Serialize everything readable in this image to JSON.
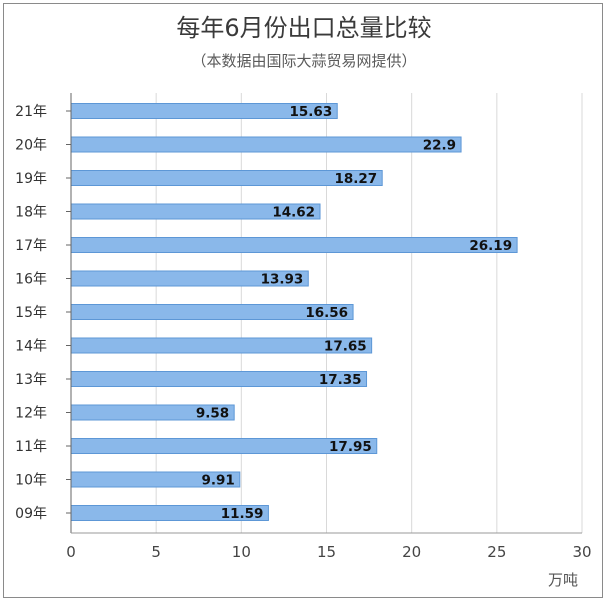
{
  "title": "每年6月份出口总量比较",
  "subtitle": "（本数据由国际大蒜贸易网提供）",
  "colors": {
    "bar": "#8ab8ea",
    "bar_edge": "#5d97d6",
    "grid": "#d9d9d9",
    "text": "#333333"
  },
  "chart_data": {
    "type": "bar",
    "orientation": "horizontal",
    "title": "每年6月份出口总量比较",
    "subtitle": "（本数据由国际大蒜贸易网提供）",
    "categories": [
      "21年",
      "20年",
      "19年",
      "18年",
      "17年",
      "16年",
      "15年",
      "14年",
      "13年",
      "12年",
      "11年",
      "10年",
      "09年"
    ],
    "values": [
      15.63,
      22.9,
      18.27,
      14.62,
      26.19,
      13.93,
      16.56,
      17.65,
      17.35,
      9.58,
      17.95,
      9.91,
      11.59
    ],
    "value_labels": [
      "15.63",
      "22.9",
      "18.27",
      "14.62",
      "26.19",
      "13.93",
      "16.56",
      "17.65",
      "17.35",
      "9.58",
      "17.95",
      "9.91",
      "11.59"
    ],
    "xticks": [
      "0",
      "5",
      "10",
      "15",
      "20",
      "25",
      "30"
    ],
    "xlim": [
      0,
      30
    ],
    "xlabel": "万吨",
    "ylabel": "",
    "grid": true,
    "legend": "none"
  }
}
